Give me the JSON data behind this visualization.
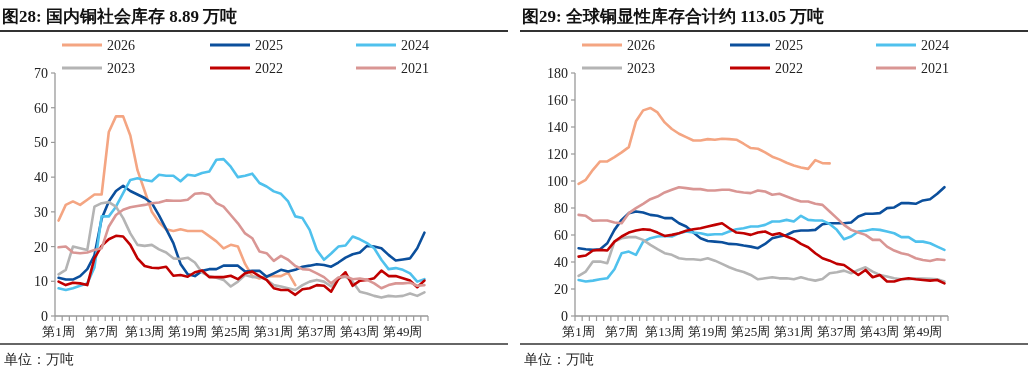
{
  "chart_data": [
    {
      "type": "line",
      "title": "图28:  国内铜社会库存 8.89 万吨",
      "categories": [
        "第1周",
        null,
        null,
        null,
        null,
        null,
        "第7周",
        null,
        null,
        null,
        null,
        null,
        "第13周",
        null,
        null,
        null,
        null,
        null,
        "第19周",
        null,
        null,
        null,
        null,
        null,
        "第25周",
        null,
        null,
        null,
        null,
        null,
        "第31周",
        null,
        null,
        null,
        null,
        null,
        "第37周",
        null,
        null,
        null,
        null,
        null,
        "第43周",
        null,
        null,
        null,
        null,
        null,
        "第49周",
        null,
        null,
        null
      ],
      "ylim": [
        0,
        70
      ],
      "yticks": [
        0,
        10,
        20,
        30,
        40,
        50,
        60,
        70
      ],
      "legend": "top",
      "series": [
        {
          "name": "2026",
          "color": "#f4a582",
          "values": [
            27.5,
            32,
            33,
            32,
            33.5,
            35,
            35,
            53,
            57.5,
            57.5,
            52,
            42,
            36,
            30,
            27,
            25,
            24.5,
            25,
            24.5,
            24.5,
            24.5,
            23,
            21.5,
            19.5,
            20.5,
            20,
            15,
            11.5,
            10.8,
            11.5,
            11.5,
            11.5,
            12.5,
            8.89,
            null,
            null,
            null,
            null,
            null,
            null,
            null,
            null,
            null,
            null,
            null,
            null,
            null,
            null,
            null,
            null,
            null,
            null
          ]
        },
        {
          "name": "2025",
          "color": "#0b4f9c",
          "values": [
            11,
            10.5,
            10.5,
            11.5,
            13.5,
            17.5,
            28,
            33,
            36,
            37.5,
            36,
            35,
            34,
            32.5,
            29,
            25,
            21,
            15,
            12,
            11.5,
            13,
            13.5,
            13.5,
            14.5,
            14.5,
            14.5,
            12.8,
            13,
            13,
            11.3,
            12.3,
            13.3,
            12.8,
            13.3,
            14.2,
            14.5,
            14.9,
            14.7,
            14.2,
            15.4,
            16.8,
            17.8,
            18.3,
            20.2,
            20,
            19.5,
            17.6,
            16,
            16.3,
            16.6,
            19.5,
            24
          ]
        },
        {
          "name": "2024",
          "color": "#4fc1ed",
          "values": [
            8,
            7.5,
            8,
            8.7,
            9.4,
            14,
            28.7,
            28.7,
            31.5,
            35.4,
            39.2,
            39.7,
            39.2,
            38.8,
            40.7,
            40.4,
            40.4,
            38.8,
            40.7,
            40.4,
            41.2,
            41.6,
            45,
            45.2,
            43,
            40,
            40.4,
            41,
            38.3,
            37.3,
            35.9,
            35.2,
            33,
            28.7,
            28.2,
            24.8,
            19,
            16.2,
            18,
            20,
            20.3,
            22.9,
            22.1,
            21,
            19.5,
            16.2,
            13.5,
            13.8,
            13.3,
            12.3,
            9.9,
            10.6
          ]
        },
        {
          "name": "2023",
          "color": "#b4b4b4",
          "values": [
            12,
            13.3,
            20,
            19.5,
            19,
            31.5,
            32.5,
            32.8,
            31.5,
            28.2,
            23.8,
            20.5,
            20.2,
            20.5,
            19.2,
            18.3,
            16.6,
            16.4,
            16.8,
            15.4,
            12.5,
            11.5,
            11,
            10.4,
            8.5,
            9.9,
            11.8,
            11.2,
            11.3,
            10.4,
            8.9,
            8.5,
            8,
            7.5,
            8.9,
            9.9,
            10.4,
            9.9,
            8.5,
            10.9,
            11.3,
            9.9,
            7,
            6.5,
            5.8,
            5.3,
            5.8,
            5.6,
            5.8,
            6.5,
            5.8,
            6.8
          ]
        },
        {
          "name": "2022",
          "color": "#c00000",
          "values": [
            9.9,
            8.9,
            9.6,
            9.4,
            8.9,
            16.6,
            20.2,
            22.1,
            23.1,
            22.9,
            20.5,
            16.6,
            14.4,
            13.9,
            13.8,
            14.2,
            11.6,
            11.8,
            11.3,
            12.6,
            13.1,
            11.2,
            11.2,
            11.2,
            11.6,
            10.6,
            12.3,
            12.8,
            11.5,
            10.4,
            8,
            7.5,
            7.5,
            6.1,
            7.7,
            8,
            8.9,
            8.7,
            7,
            10.6,
            12.6,
            8.7,
            10.2,
            10.4,
            10.9,
            13.1,
            11.5,
            11.5,
            10.9,
            10.2,
            8.3,
            10.2
          ]
        },
        {
          "name": "2021",
          "color": "#d99694",
          "values": [
            19.8,
            20,
            18.3,
            18.1,
            18.3,
            19,
            19.5,
            25.8,
            29.1,
            30.6,
            31.3,
            31.7,
            32,
            32.5,
            32.7,
            33.3,
            33.2,
            33.2,
            33.5,
            35.2,
            35.4,
            34.9,
            32.5,
            31.5,
            29.1,
            26.7,
            23.8,
            22.4,
            18.6,
            18.1,
            15.9,
            17.3,
            16.2,
            14.4,
            13.5,
            13.3,
            12.3,
            11.2,
            9.4,
            11.1,
            11.5,
            10.6,
            10.8,
            10.4,
            9.4,
            8,
            8.9,
            9.4,
            9.4,
            9.6,
            8.7,
            8.9
          ]
        }
      ],
      "annotations": [
        "单位：万吨"
      ]
    },
    {
      "type": "line",
      "title": "图29:  全球铜显性库存合计约 113.05 万吨",
      "categories": [
        "第1周",
        null,
        null,
        null,
        null,
        null,
        "第7周",
        null,
        null,
        null,
        null,
        null,
        "第13周",
        null,
        null,
        null,
        null,
        null,
        "第19周",
        null,
        null,
        null,
        null,
        null,
        "第25周",
        null,
        null,
        null,
        null,
        null,
        "第31周",
        null,
        null,
        null,
        null,
        null,
        "第37周",
        null,
        null,
        null,
        null,
        null,
        "第43周",
        null,
        null,
        null,
        null,
        null,
        "第49周",
        null,
        null,
        null
      ],
      "ylim": [
        0,
        180
      ],
      "yticks": [
        0,
        20,
        40,
        60,
        80,
        100,
        120,
        140,
        160,
        180
      ],
      "legend": "top",
      "series": [
        {
          "name": "2026",
          "color": "#f4a582",
          "values": [
            97.9,
            100.9,
            108.3,
            114.5,
            114.5,
            117.7,
            121.2,
            125.1,
            144.2,
            152.3,
            154.1,
            150.8,
            143.4,
            138.5,
            135,
            132.5,
            130,
            130,
            131,
            130.6,
            131.3,
            131,
            130.6,
            127.6,
            124.4,
            123.9,
            121.2,
            118,
            116,
            113.5,
            111.5,
            110,
            109,
            115.5,
            113.2,
            113.05,
            null,
            null,
            null,
            null,
            null,
            null,
            null,
            null,
            null,
            null,
            null,
            null,
            null,
            null,
            null,
            null
          ]
        },
        {
          "name": "2025",
          "color": "#0b4f9c",
          "values": [
            50.2,
            49.5,
            49,
            49.5,
            53.9,
            63.8,
            71.2,
            76.2,
            77.4,
            76.7,
            74.9,
            74.2,
            72.5,
            72.5,
            68.7,
            66.3,
            61.8,
            57.6,
            55.6,
            55.1,
            54.6,
            53.4,
            53.2,
            52.2,
            51.4,
            50.2,
            53.4,
            57.6,
            58.9,
            60,
            62.6,
            63.3,
            63.3,
            63.8,
            68,
            68.7,
            68.7,
            68.7,
            69.2,
            73.7,
            75.7,
            75.7,
            76.2,
            79.9,
            80.4,
            83.6,
            83.6,
            83.1,
            85.6,
            86.5,
            90.5,
            95.4
          ]
        },
        {
          "name": "2024",
          "color": "#4fc1ed",
          "values": [
            26.7,
            25.5,
            26.2,
            27.2,
            27.9,
            34.6,
            46.5,
            47.7,
            45.3,
            55.1,
            57.6,
            58.9,
            59.3,
            58.9,
            61.3,
            62.6,
            61.8,
            61.3,
            60.1,
            60.6,
            60.6,
            62.6,
            64.3,
            65,
            66.3,
            66.3,
            67.5,
            70,
            70,
            71.2,
            70,
            74.2,
            71.2,
            70.7,
            70.7,
            68.2,
            63.8,
            56.9,
            58.9,
            62.6,
            63.1,
            64.3,
            63.8,
            62.6,
            61.3,
            58.4,
            58.4,
            55.1,
            55.1,
            53.9,
            51.4,
            49
          ]
        },
        {
          "name": "2023",
          "color": "#b4b4b4",
          "values": [
            29.7,
            32.9,
            40.3,
            40.3,
            39.1,
            55.1,
            57.6,
            58.4,
            58.4,
            56.4,
            52.7,
            49.5,
            46.5,
            45.3,
            42.8,
            42,
            42,
            41.5,
            42.8,
            41,
            38.6,
            36.1,
            34.1,
            32.6,
            30.4,
            27.2,
            27.9,
            28.7,
            27.9,
            27.9,
            27.2,
            28.7,
            27.2,
            26.2,
            27.4,
            31.7,
            32.4,
            33.6,
            31.7,
            34.1,
            36.1,
            32.9,
            30.4,
            29.2,
            27.9,
            27.2,
            27.2,
            27.8,
            27.8,
            27.6,
            27.2,
            25.5
          ]
        },
        {
          "name": "2022",
          "color": "#c00000",
          "values": [
            44,
            44.8,
            48.5,
            49,
            48.5,
            55.1,
            58.9,
            61.8,
            63.3,
            64.3,
            63.8,
            61.8,
            59.3,
            60.1,
            61.3,
            63.1,
            64.3,
            65,
            66.3,
            67.5,
            68.7,
            65,
            61.8,
            61.3,
            60.1,
            61.8,
            62.6,
            60.1,
            61.3,
            58.9,
            56.9,
            53.4,
            50.9,
            46.5,
            42.8,
            41,
            38.6,
            37.8,
            34.1,
            30.4,
            34.1,
            28.7,
            30.4,
            25.5,
            25.5,
            27.2,
            27.9,
            27.2,
            26.7,
            26.2,
            26.7,
            24.2
          ]
        },
        {
          "name": "2021",
          "color": "#d99694",
          "values": [
            74.9,
            74.2,
            70.5,
            70.7,
            70.7,
            69.2,
            68.7,
            76.2,
            79.9,
            83.1,
            86.5,
            88.5,
            91.5,
            93.5,
            95.4,
            94.7,
            94,
            94,
            93,
            93,
            93.5,
            93.5,
            92.2,
            91.5,
            91,
            93,
            92.2,
            89.8,
            90.5,
            88.5,
            86.5,
            84.8,
            84.8,
            83.1,
            82.3,
            77.4,
            72.5,
            67.5,
            63.8,
            61.8,
            60.1,
            56.4,
            56.4,
            51.4,
            48.5,
            46.5,
            45.3,
            42.8,
            41.5,
            40.8,
            42,
            41.5
          ]
        }
      ],
      "annotations": [
        "单位：万吨"
      ]
    }
  ]
}
